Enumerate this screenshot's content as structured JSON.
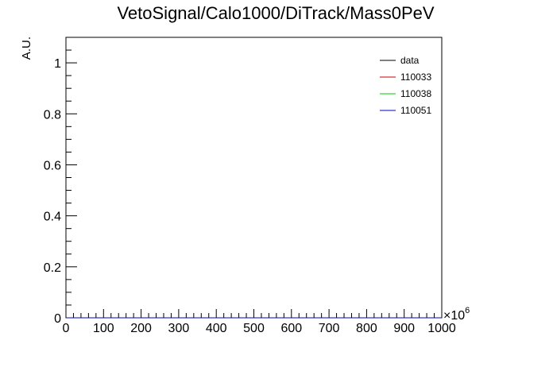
{
  "chart_data": {
    "type": "line",
    "title": "VetoSignal/Calo1000/DiTrack/Mass0PeV",
    "xlabel": "",
    "ylabel": "A.U.",
    "x_exponent_label": "×10",
    "x_exponent_power": "6",
    "xlim": [
      0,
      1000
    ],
    "ylim": [
      0,
      1.1
    ],
    "x_ticks": [
      "0",
      "100",
      "200",
      "300",
      "400",
      "500",
      "600",
      "700",
      "800",
      "900",
      "1000"
    ],
    "y_ticks": [
      "0",
      "0.2",
      "0.4",
      "0.6",
      "0.8",
      "1"
    ],
    "grid": false,
    "legend_position": "top-right",
    "series": [
      {
        "name": "data",
        "color": "#000000",
        "x": [],
        "y": []
      },
      {
        "name": "110033",
        "color": "#cc0000",
        "x": [],
        "y": []
      },
      {
        "name": "110038",
        "color": "#00cc00",
        "x": [],
        "y": []
      },
      {
        "name": "110051",
        "color": "#0000cc",
        "x": [],
        "y": []
      }
    ]
  }
}
